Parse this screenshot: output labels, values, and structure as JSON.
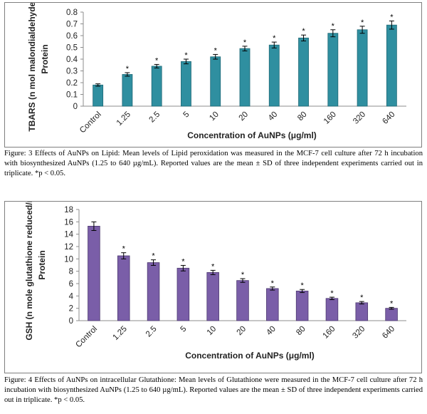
{
  "chart_data": [
    {
      "type": "bar",
      "categories": [
        "Control",
        "1.25",
        "2.5",
        "5",
        "10",
        "20",
        "40",
        "80",
        "160",
        "320",
        "640"
      ],
      "values": [
        0.18,
        0.27,
        0.34,
        0.38,
        0.42,
        0.49,
        0.52,
        0.58,
        0.62,
        0.65,
        0.69
      ],
      "errors": [
        0.01,
        0.015,
        0.015,
        0.02,
        0.02,
        0.02,
        0.025,
        0.025,
        0.03,
        0.03,
        0.035
      ],
      "significance": [
        "",
        "*",
        "*",
        "*",
        "*",
        "*",
        "*",
        "*",
        "*",
        "*",
        "*"
      ],
      "xlabel": "Concentration of AuNPs (μg/ml)",
      "ylabel": "TBARS (n mol malondialdehyde/mg Protein",
      "ylabel_line1": "TBARS (n mol malondialdehyde/mg",
      "ylabel_line2": "Protein",
      "ylim": [
        0,
        0.8
      ],
      "yticks": [
        "0",
        "0.1",
        "0.2",
        "0.3",
        "0.4",
        "0.5",
        "0.6",
        "0.7",
        "0.8"
      ],
      "grid": false,
      "colors": {
        "bar": "#2f8fa0",
        "bar_edge": "#1f6876"
      }
    },
    {
      "type": "bar",
      "categories": [
        "Control",
        "1.25",
        "2.5",
        "5",
        "10",
        "20",
        "40",
        "80",
        "160",
        "320",
        "640"
      ],
      "values": [
        15.3,
        10.5,
        9.4,
        8.5,
        7.8,
        6.5,
        5.2,
        4.8,
        3.6,
        2.9,
        2.0
      ],
      "errors": [
        0.7,
        0.5,
        0.45,
        0.45,
        0.35,
        0.3,
        0.25,
        0.25,
        0.2,
        0.2,
        0.15
      ],
      "significance": [
        "",
        "*",
        "*",
        "*",
        "*",
        "*",
        "*",
        "*",
        "*",
        "*",
        "*"
      ],
      "xlabel": "Concentration of AuNPs (μg/ml)",
      "ylabel": "GSH (n mole glutathione reduced/mg Protein",
      "ylabel_line1": "GSH (n mole glutathione reduced/mg",
      "ylabel_line2": "Protein",
      "ylim": [
        0,
        18
      ],
      "yticks": [
        "0",
        "2",
        "4",
        "6",
        "8",
        "10",
        "12",
        "14",
        "16",
        "18"
      ],
      "grid": false,
      "colors": {
        "bar": "#7a5ea8",
        "bar_edge": "#4d3a70"
      }
    }
  ],
  "captions": {
    "fig3": "Figure: 3 Effects of AuNPs on Lipid: Mean levels of Lipid peroxidation was measured in the MCF-7 cell culture after 72 h incubation with biosynthesized AuNPs (1.25 to 640 µg/mL). Reported values are the mean ± SD of three independent experiments carried out in triplicate. *p < 0.05.",
    "fig4": "Figure: 4 Effects of AuNPs on intracellular Glutathione: Mean levels of Glutathione were measured in the MCF-7 cell culture after 72 h incubation with biosynthesized AuNPs (1.25 to 640 µg/mL). Reported values are the mean ± SD of three independent experiments carried out in triplicate. *p < 0.05."
  }
}
